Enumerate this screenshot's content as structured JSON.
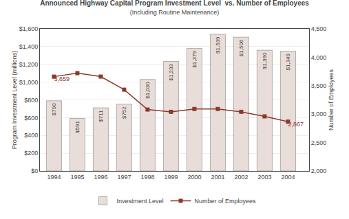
{
  "chart_data": {
    "type": "bar",
    "title": "Announced Highway Capital Program Investment Level  vs. Number of Employees",
    "subtitle": "(Including Routine Maintenance)",
    "x": [
      1994,
      1995,
      1996,
      1997,
      1998,
      1999,
      2000,
      2001,
      2002,
      2003,
      2004
    ],
    "xlim": [
      1993.4,
      2004.9
    ],
    "xticks": [
      1994,
      1995,
      1996,
      1997,
      1998,
      1999,
      2000,
      2001,
      2002,
      2003,
      2004
    ],
    "ylabel": "Program Investment Level (millions)",
    "y2label": "Number of Employees",
    "ylim": [
      0,
      1600
    ],
    "yticks": [
      {
        "value": 0,
        "label": "$0"
      },
      {
        "value": 200,
        "label": "$200"
      },
      {
        "value": 400,
        "label": "$400"
      },
      {
        "value": 600,
        "label": "$600"
      },
      {
        "value": 800,
        "label": "$800"
      },
      {
        "value": 1000,
        "label": "$1,000"
      },
      {
        "value": 1200,
        "label": "$1,200"
      },
      {
        "value": 1400,
        "label": "$1,400"
      },
      {
        "value": 1600,
        "label": "$1,600"
      }
    ],
    "y2lim": [
      2000,
      4500
    ],
    "y2ticks": [
      {
        "value": 2000,
        "label": "2,000"
      },
      {
        "value": 2500,
        "label": "2,500"
      },
      {
        "value": 3000,
        "label": "3,000"
      },
      {
        "value": 3500,
        "label": "3,500"
      },
      {
        "value": 4000,
        "label": "4,000"
      },
      {
        "value": 4500,
        "label": "4,500"
      }
    ],
    "grid": true,
    "legend": "bottom",
    "data_labels": true,
    "series": [
      {
        "name": "Investment Level",
        "type": "bar",
        "color": "#e8ddd8",
        "values": [
          790,
          591,
          711,
          752,
          1030,
          1233,
          1379,
          1539,
          1506,
          1360,
          1349
        ],
        "value_labels": [
          "$790",
          "$591",
          "$711",
          "$752",
          "$1,030",
          "$1,233",
          "$1,379",
          "$1,539",
          "$1,506",
          "$1,360",
          "$1,349"
        ]
      },
      {
        "name": "Number of Employees",
        "type": "line",
        "axis": "y2",
        "color": "#8b3a2a",
        "marker": "square",
        "values": [
          3659,
          3720,
          3660,
          3430,
          3080,
          3040,
          3090,
          3090,
          3040,
          2960,
          2867
        ],
        "value_labels": [
          "3,659",
          null,
          null,
          null,
          null,
          null,
          null,
          null,
          null,
          null,
          "2,867"
        ]
      }
    ]
  }
}
